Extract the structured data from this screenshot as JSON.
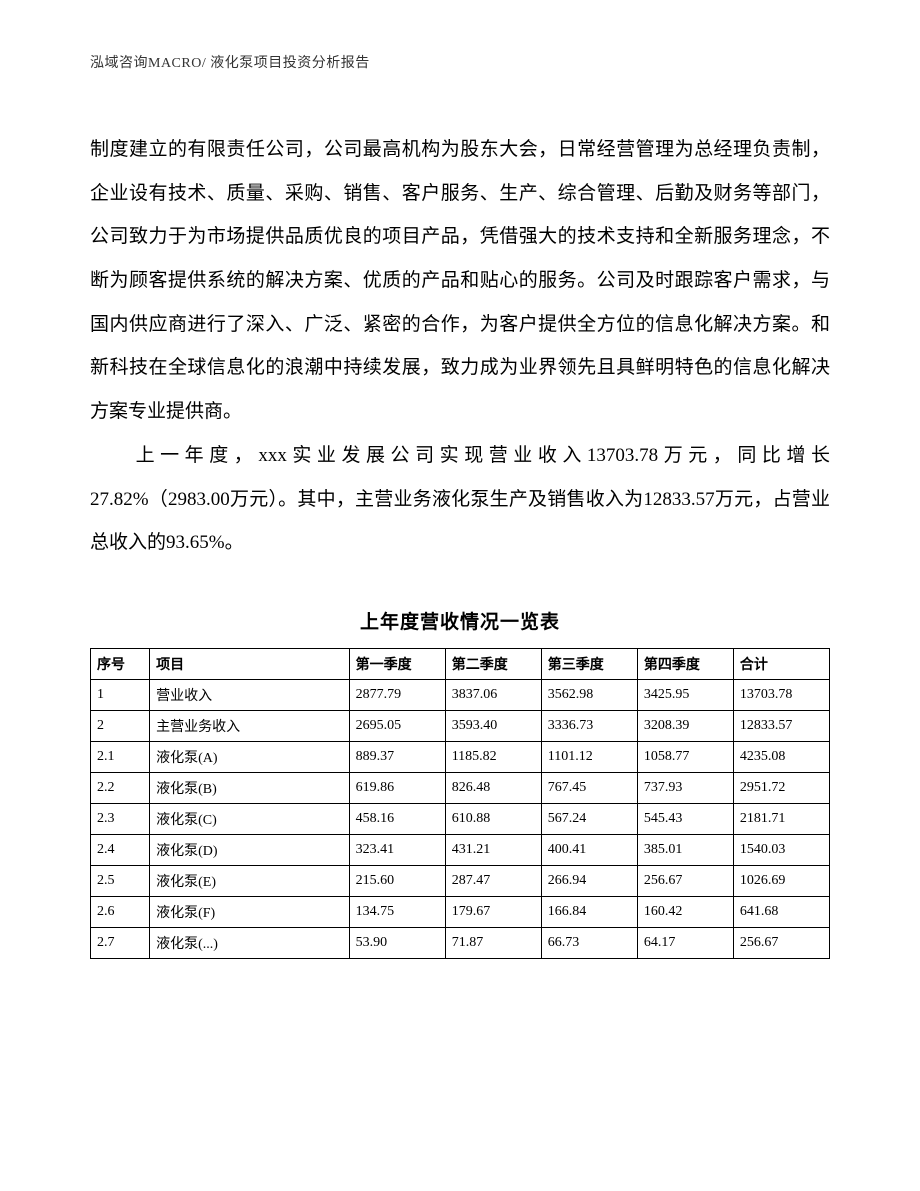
{
  "header": {
    "text": "泓域咨询MACRO/    液化泵项目投资分析报告"
  },
  "body": {
    "p1": "制度建立的有限责任公司，公司最高机构为股东大会，日常经营管理为总经理负责制，企业设有技术、质量、采购、销售、客户服务、生产、综合管理、后勤及财务等部门，公司致力于为市场提供品质优良的项目产品，凭借强大的技术支持和全新服务理念，不断为顾客提供系统的解决方案、优质的产品和贴心的服务。公司及时跟踪客户需求，与国内供应商进行了深入、广泛、紧密的合作，为客户提供全方位的信息化解决方案。和新科技在全球信息化的浪潮中持续发展，致力成为业界领先且具鲜明特色的信息化解决方案专业提供商。",
    "p2": "上一年度，xxx实业发展公司实现营业收入13703.78万元，同比增长27.82%（2983.00万元）。其中，主营业务液化泵生产及销售收入为12833.57万元，占营业总收入的93.65%。"
  },
  "table": {
    "title": "上年度营收情况一览表",
    "columns": [
      "序号",
      "项目",
      "第一季度",
      "第二季度",
      "第三季度",
      "第四季度",
      "合计"
    ],
    "rows": [
      [
        "1",
        "营业收入",
        "2877.79",
        "3837.06",
        "3562.98",
        "3425.95",
        "13703.78"
      ],
      [
        "2",
        "主营业务收入",
        "2695.05",
        "3593.40",
        "3336.73",
        "3208.39",
        "12833.57"
      ],
      [
        "2.1",
        "液化泵(A)",
        "889.37",
        "1185.82",
        "1101.12",
        "1058.77",
        "4235.08"
      ],
      [
        "2.2",
        "液化泵(B)",
        "619.86",
        "826.48",
        "767.45",
        "737.93",
        "2951.72"
      ],
      [
        "2.3",
        "液化泵(C)",
        "458.16",
        "610.88",
        "567.24",
        "545.43",
        "2181.71"
      ],
      [
        "2.4",
        "液化泵(D)",
        "323.41",
        "431.21",
        "400.41",
        "385.01",
        "1540.03"
      ],
      [
        "2.5",
        "液化泵(E)",
        "215.60",
        "287.47",
        "266.94",
        "256.67",
        "1026.69"
      ],
      [
        "2.6",
        "液化泵(F)",
        "134.75",
        "179.67",
        "166.84",
        "160.42",
        "641.68"
      ],
      [
        "2.7",
        "液化泵(...)",
        "53.90",
        "71.87",
        "66.73",
        "64.17",
        "256.67"
      ]
    ]
  }
}
